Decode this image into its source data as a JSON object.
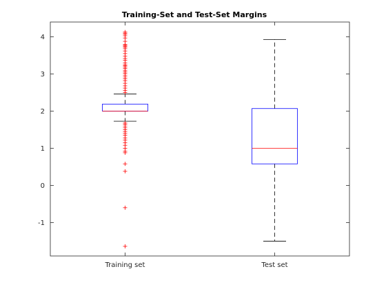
{
  "chart_data": {
    "type": "box",
    "title": "Training-Set and Test-Set Margins",
    "xlabel": "",
    "ylabel": "",
    "categories": [
      "Training set",
      "Test set"
    ],
    "ylim": [
      -1.9,
      4.4
    ],
    "yticks": [
      -1,
      0,
      1,
      2,
      3,
      4
    ],
    "grid": false,
    "boxes": [
      {
        "category": "Training set",
        "lower_whisker": 1.73,
        "q1": 2.0,
        "median": 2.0,
        "q3": 2.19,
        "upper_whisker": 2.46,
        "outliers": [
          4.13,
          4.1,
          4.07,
          4.03,
          3.97,
          3.88,
          3.8,
          3.77,
          3.75,
          3.72,
          3.68,
          3.62,
          3.55,
          3.48,
          3.42,
          3.37,
          3.3,
          3.25,
          3.22,
          3.19,
          3.15,
          3.1,
          3.06,
          3.02,
          2.97,
          2.92,
          2.87,
          2.82,
          2.75,
          2.68,
          2.62,
          2.56,
          2.5,
          1.68,
          1.65,
          1.6,
          1.55,
          1.5,
          1.45,
          1.4,
          1.35,
          1.28,
          1.22,
          1.15,
          1.08,
          1.0,
          0.92,
          0.88,
          0.58,
          0.38,
          -0.6,
          -1.64
        ]
      },
      {
        "category": "Test set",
        "lower_whisker": -1.5,
        "q1": 0.58,
        "median": 1.0,
        "q3": 2.07,
        "upper_whisker": 3.93,
        "outliers": []
      }
    ],
    "colors": {
      "box": "#0000ff",
      "median": "#ff0000",
      "whisker": "#000000",
      "outlier": "#ff0000",
      "axes": "#262626"
    }
  }
}
